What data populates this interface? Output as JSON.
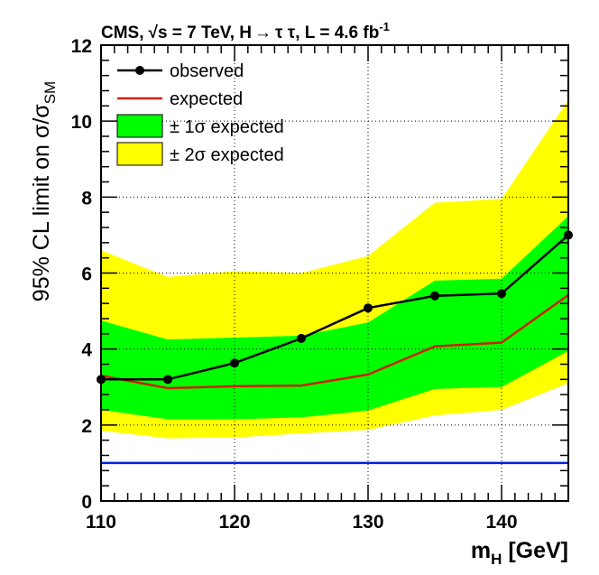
{
  "chart_data": {
    "type": "line",
    "title": "CMS, √s = 7 TeV, H→ττ, L = 4.6 fb⁻¹",
    "title_parts": {
      "experiment": "CMS,",
      "sqrt_symbol": "√",
      "energy": "s = 7 TeV, H",
      "arrow": "→",
      "channel": "τ τ, L = 4.6 fb",
      "exponent": "-1"
    },
    "xlabel": "m_H [GeV]",
    "xlabel_parts": {
      "main": "m",
      "sub": "H",
      "rest": " [GeV]"
    },
    "ylabel": "95% CL limit on σ/σ_SM",
    "ylabel_parts": {
      "main": "95% CL limit on σ/σ",
      "sub": "SM"
    },
    "xlim": [
      110,
      145
    ],
    "ylim": [
      0,
      12
    ],
    "x_ticks": [
      110,
      120,
      130,
      140
    ],
    "x_tick_labels": [
      "110",
      "120",
      "130",
      "140"
    ],
    "y_ticks": [
      0,
      2,
      4,
      6,
      8,
      10,
      12
    ],
    "y_tick_labels": [
      "0",
      "2",
      "4",
      "6",
      "8",
      "10",
      "12"
    ],
    "grid": true,
    "x": [
      110,
      115,
      120,
      125,
      130,
      135,
      140,
      145
    ],
    "series": [
      {
        "name": "observed",
        "values": [
          3.2,
          3.2,
          3.63,
          4.28,
          5.08,
          5.4,
          5.46,
          7.0
        ],
        "color": "#000000",
        "markers": true
      },
      {
        "name": "expected",
        "values": [
          3.3,
          2.97,
          3.02,
          3.04,
          3.33,
          4.07,
          4.17,
          5.42
        ],
        "color": "#cc2200"
      }
    ],
    "bands": [
      {
        "name": "± 2σ expected",
        "color": "#ffff00",
        "lower": [
          1.85,
          1.65,
          1.67,
          1.78,
          1.87,
          2.25,
          2.4,
          3.1
        ],
        "upper": [
          6.6,
          5.9,
          6.05,
          6.0,
          6.45,
          7.85,
          7.95,
          10.55
        ]
      },
      {
        "name": "± 1σ expected",
        "color": "#00ff00",
        "lower": [
          2.4,
          2.15,
          2.15,
          2.2,
          2.38,
          2.95,
          3.0,
          3.95
        ],
        "upper": [
          4.75,
          4.25,
          4.3,
          4.35,
          4.7,
          5.8,
          5.85,
          7.5
        ]
      }
    ],
    "reference_line": {
      "y": 1,
      "color": "#0022dd"
    },
    "legend": {
      "placement": "top-left",
      "entries": [
        {
          "label": "observed",
          "kind": "line-marker",
          "color": "#000000"
        },
        {
          "label": "expected",
          "kind": "line",
          "color": "#cc2200"
        },
        {
          "label": "± 1σ expected",
          "kind": "box",
          "color": "#00ff00"
        },
        {
          "label": "± 2σ expected",
          "kind": "box",
          "color": "#ffff00"
        }
      ]
    }
  }
}
